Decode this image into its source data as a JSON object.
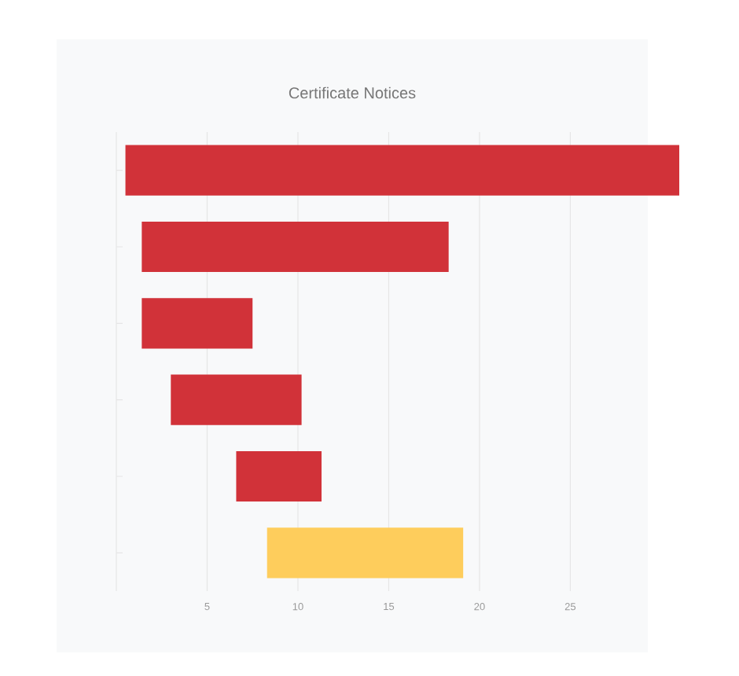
{
  "chart_data": {
    "type": "bar",
    "orientation": "horizontal",
    "title": "Certificate Notices",
    "categories": [
      null,
      null,
      null,
      null,
      null,
      null
    ],
    "base": [
      0.5,
      1.4,
      1.4,
      3,
      6.6,
      8.3
    ],
    "values": [
      30.5,
      16.9,
      6.1,
      7.2,
      4.7,
      10.8
    ],
    "colors": [
      "#d13239",
      "#d13239",
      "#d13239",
      "#d13239",
      "#d13239",
      "#fecd5c"
    ],
    "xlim": [
      0,
      31
    ],
    "xticks": [
      5,
      10,
      15,
      20,
      25
    ],
    "grid": "x"
  }
}
